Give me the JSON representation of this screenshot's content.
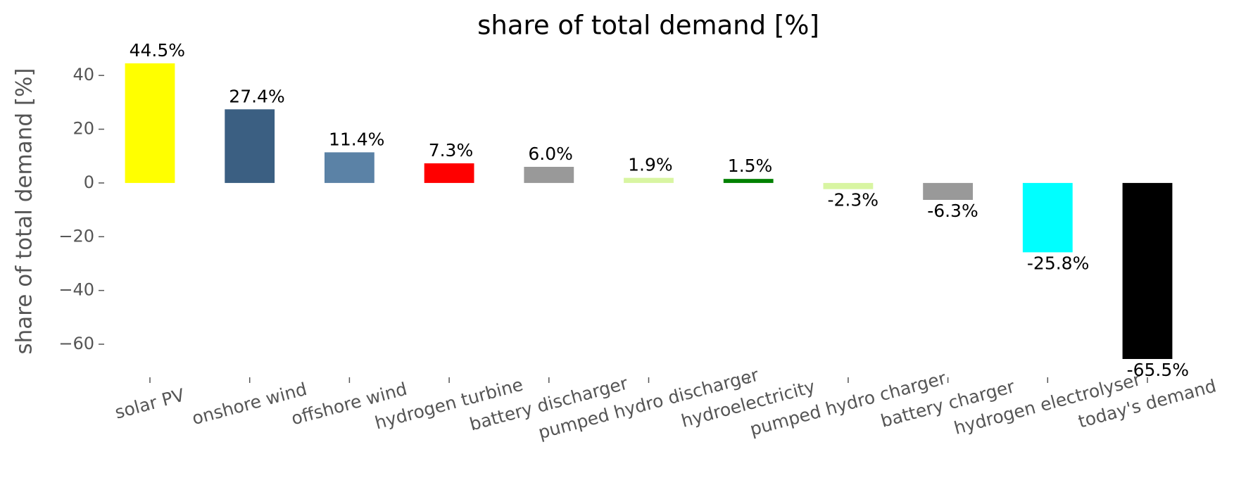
{
  "chart_data": {
    "type": "bar",
    "title": "share of total demand [%]",
    "ylabel": "share of total demand [%]",
    "categories": [
      "solar PV",
      "onshore wind",
      "offshore wind",
      "hydrogen turbine",
      "battery discharger",
      "pumped hydro discharger",
      "hydroelectricity",
      "pumped hydro charger",
      "battery charger",
      "hydrogen electrolyser",
      "today's demand"
    ],
    "values": [
      44.5,
      27.4,
      11.4,
      7.3,
      6.0,
      1.9,
      1.5,
      -2.3,
      -6.3,
      -25.8,
      -65.5
    ],
    "value_labels": [
      "44.5%",
      "27.4%",
      "11.4%",
      "7.3%",
      "6.0%",
      "1.9%",
      "1.5%",
      "-2.3%",
      "-6.3%",
      "-25.8%",
      "-65.5%"
    ],
    "colors": [
      "#ffff00",
      "#3b5f82",
      "#5b82a6",
      "#ff0000",
      "#999999",
      "#d8f5a2",
      "#008000",
      "#d8f5a2",
      "#999999",
      "#00ffff",
      "#000000"
    ],
    "ylim": [
      -71,
      50
    ],
    "yticks": [
      {
        "value": -60,
        "label": "−60"
      },
      {
        "value": -40,
        "label": "−40"
      },
      {
        "value": -20,
        "label": "−20"
      },
      0,
      20,
      40
    ],
    "grid": false
  }
}
